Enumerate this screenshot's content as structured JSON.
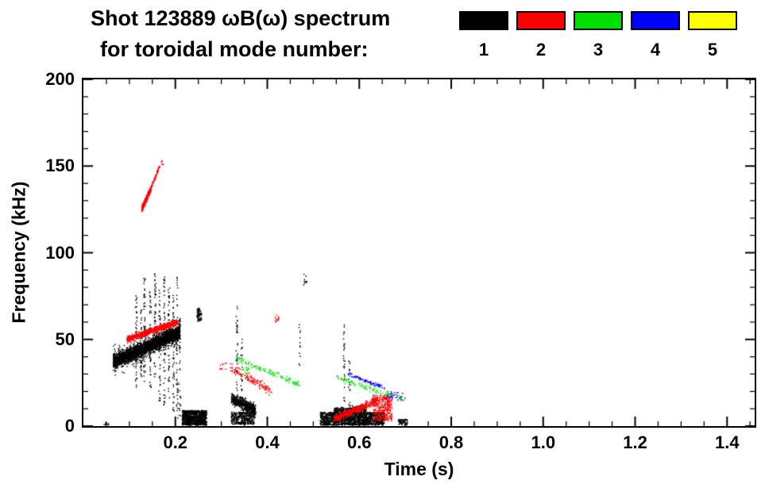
{
  "title": {
    "line1": "Shot 123889 ωB(ω) spectrum",
    "line2": "for toroidal mode number:"
  },
  "legend": {
    "items": [
      {
        "label": "1",
        "color": "#000000"
      },
      {
        "label": "2",
        "color": "#ff0000"
      },
      {
        "label": "3",
        "color": "#00e000"
      },
      {
        "label": "4",
        "color": "#0000ff"
      },
      {
        "label": "5",
        "color": "#ffff00"
      }
    ]
  },
  "chart_data": {
    "type": "scatter",
    "title": "Shot 123889 ωB(ω) spectrum for toroidal mode number:",
    "xlabel": "Time (s)",
    "ylabel": "Frequency (kHz)",
    "xlim": [
      0,
      1.46
    ],
    "ylim": [
      0,
      200
    ],
    "grid": false,
    "legend_position": "top-right",
    "x_ticks": {
      "values": [
        0.2,
        0.4,
        0.6,
        0.8,
        1.0,
        1.2,
        1.4
      ],
      "labels": [
        "0.2",
        "0.4",
        "0.6",
        "0.8",
        "1.0",
        "1.2",
        "1.4"
      ],
      "minor_step": 0.05
    },
    "y_ticks": {
      "values": [
        0,
        50,
        100,
        150,
        200
      ],
      "labels": [
        "0",
        "50",
        "100",
        "150",
        "200"
      ],
      "minor_step": 10
    },
    "series": [
      {
        "name": "n=1",
        "color": "#000000",
        "clusters": [
          {
            "kind": "band",
            "t": [
              0.065,
              0.21
            ],
            "f": [
              37,
              54
            ],
            "spread": 11,
            "count": 2600
          },
          {
            "kind": "band",
            "t": [
              0.065,
              0.21
            ],
            "f": [
              37,
              54
            ],
            "spread": 22,
            "count": 500
          },
          {
            "kind": "spike",
            "t": 0.115,
            "f": [
              22,
              76
            ],
            "count": 50
          },
          {
            "kind": "spike",
            "t": 0.126,
            "f": [
              28,
              72
            ],
            "count": 40
          },
          {
            "kind": "spike",
            "t": 0.133,
            "f": [
              25,
              86
            ],
            "count": 55
          },
          {
            "kind": "spike",
            "t": 0.146,
            "f": [
              22,
              78
            ],
            "count": 45
          },
          {
            "kind": "spike",
            "t": 0.156,
            "f": [
              28,
              88
            ],
            "count": 50
          },
          {
            "kind": "spike",
            "t": 0.166,
            "f": [
              14,
              79
            ],
            "count": 45
          },
          {
            "kind": "spike",
            "t": 0.176,
            "f": [
              12,
              86
            ],
            "count": 55
          },
          {
            "kind": "spike",
            "t": 0.186,
            "f": [
              14,
              80
            ],
            "count": 45
          },
          {
            "kind": "spike",
            "t": 0.196,
            "f": [
              8,
              78
            ],
            "count": 50
          },
          {
            "kind": "spike",
            "t": 0.204,
            "f": [
              4,
              86
            ],
            "count": 45
          },
          {
            "kind": "spike",
            "t": 0.21,
            "f": [
              1,
              62
            ],
            "count": 40
          },
          {
            "kind": "blob",
            "t": [
              0.215,
              0.268
            ],
            "f": [
              0.5,
              9
            ],
            "count": 900
          },
          {
            "kind": "blob",
            "t": [
              0.247,
              0.257
            ],
            "f": [
              60,
              68
            ],
            "count": 70
          },
          {
            "kind": "band",
            "t": [
              0.322,
              0.375
            ],
            "f": [
              16,
              9
            ],
            "spread": 10,
            "count": 500
          },
          {
            "kind": "blob",
            "t": [
              0.322,
              0.372
            ],
            "f": [
              1,
              8
            ],
            "count": 350
          },
          {
            "kind": "spike",
            "t": 0.334,
            "f": [
              20,
              70
            ],
            "count": 35
          },
          {
            "kind": "spike",
            "t": 0.344,
            "f": [
              20,
              52
            ],
            "count": 20
          },
          {
            "kind": "spike",
            "t": 0.47,
            "f": [
              35,
              60
            ],
            "count": 12,
            "jitter": 0.002
          },
          {
            "kind": "blob",
            "t": [
              0.478,
              0.486
            ],
            "f": [
              80,
              88
            ],
            "count": 10
          },
          {
            "kind": "blob",
            "t": [
              0.515,
              0.655
            ],
            "f": [
              0.5,
              8
            ],
            "count": 1400
          },
          {
            "kind": "band",
            "t": [
              0.545,
              0.615
            ],
            "f": [
              9,
              10
            ],
            "spread": 6,
            "count": 250
          },
          {
            "kind": "spike",
            "t": 0.567,
            "f": [
              12,
              62
            ],
            "count": 28
          },
          {
            "kind": "spike",
            "t": 0.578,
            "f": [
              12,
              40
            ],
            "count": 14
          },
          {
            "kind": "blob",
            "t": [
              0.685,
              0.705
            ],
            "f": [
              0.5,
              4
            ],
            "count": 60
          },
          {
            "kind": "blob",
            "t": [
              0.045,
              0.055
            ],
            "f": [
              0.5,
              2
            ],
            "count": 8
          }
        ]
      },
      {
        "name": "n=2",
        "color": "#ff0000",
        "clusters": [
          {
            "kind": "band",
            "t": [
              0.127,
              0.147
            ],
            "f": [
              125,
              137
            ],
            "spread": 5,
            "count": 260
          },
          {
            "kind": "band",
            "t": [
              0.147,
              0.166
            ],
            "f": [
              137,
              150
            ],
            "spread": 3,
            "count": 70
          },
          {
            "kind": "blob",
            "t": [
              0.168,
              0.174
            ],
            "f": [
              150,
              153
            ],
            "count": 6
          },
          {
            "kind": "band",
            "t": [
              0.095,
              0.205
            ],
            "f": [
              50,
              60
            ],
            "spread": 5,
            "count": 800
          },
          {
            "kind": "band",
            "t": [
              0.318,
              0.41
            ],
            "f": [
              34,
              20
            ],
            "spread": 7,
            "count": 130
          },
          {
            "kind": "blob",
            "t": [
              0.296,
              0.312
            ],
            "f": [
              32,
              37
            ],
            "count": 10
          },
          {
            "kind": "blob",
            "t": [
              0.415,
              0.426
            ],
            "f": [
              60,
              64
            ],
            "count": 14
          },
          {
            "kind": "band",
            "t": [
              0.545,
              0.64
            ],
            "f": [
              4,
              15
            ],
            "spread": 6,
            "count": 420
          },
          {
            "kind": "blob",
            "t": [
              0.63,
              0.672
            ],
            "f": [
              3,
              18
            ],
            "count": 300
          },
          {
            "kind": "spike",
            "t": 0.662,
            "f": [
              3,
              21
            ],
            "count": 25
          }
        ]
      },
      {
        "name": "n=3",
        "color": "#00e000",
        "clusters": [
          {
            "kind": "band",
            "t": [
              0.332,
              0.47
            ],
            "f": [
              39,
              24
            ],
            "spread": 5,
            "count": 120
          },
          {
            "kind": "blob",
            "t": [
              0.345,
              0.36
            ],
            "f": [
              29,
              34
            ],
            "count": 15
          },
          {
            "kind": "band",
            "t": [
              0.55,
              0.7
            ],
            "f": [
              28,
              15
            ],
            "spread": 5,
            "count": 110
          }
        ]
      },
      {
        "name": "n=4",
        "color": "#0000ff",
        "clusters": [
          {
            "kind": "band",
            "t": [
              0.575,
              0.655
            ],
            "f": [
              30,
              22
            ],
            "spread": 3,
            "count": 80
          },
          {
            "kind": "blob",
            "t": [
              0.658,
              0.7
            ],
            "f": [
              15,
              20
            ],
            "count": 30
          }
        ]
      },
      {
        "name": "n=5",
        "color": "#ffff00",
        "clusters": []
      }
    ]
  }
}
